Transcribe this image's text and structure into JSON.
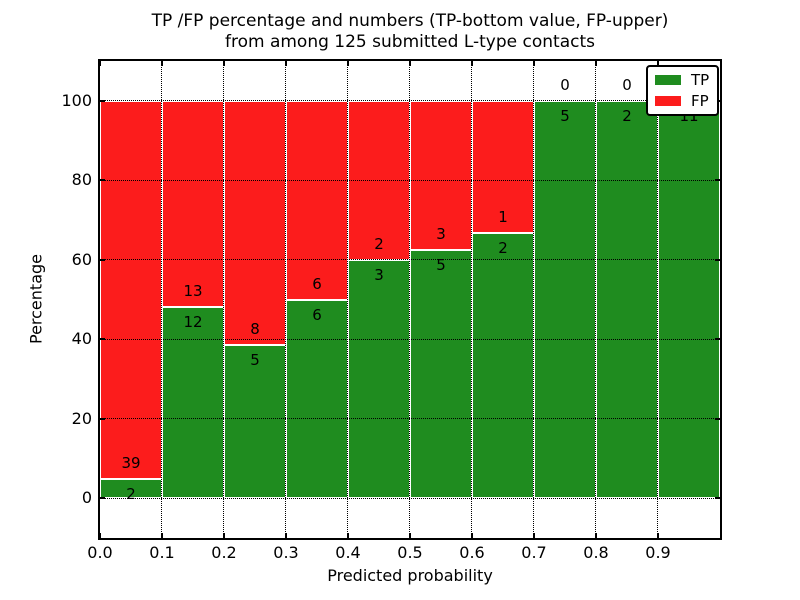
{
  "figure": {
    "title_line1": "TP /FP percentage and numbers (TP-bottom value, FP-upper)",
    "title_line2": "from among 125 submitted L-type contacts"
  },
  "chart_data": {
    "type": "bar",
    "subtype": "stacked-percentage-histogram",
    "title": "TP /FP percentage and numbers (TP-bottom value, FP-upper)\nfrom among 125 submitted L-type contacts",
    "xlabel": "Predicted probability",
    "ylabel": "Percentage",
    "xlim": [
      0.0,
      1.0
    ],
    "ylim": [
      -10,
      110
    ],
    "bin_width": 0.1,
    "bin_starts": [
      0.0,
      0.1,
      0.2,
      0.3,
      0.4,
      0.5,
      0.6,
      0.7,
      0.8,
      0.9
    ],
    "xtick_labels": [
      "0.0",
      "0.1",
      "0.2",
      "0.3",
      "0.4",
      "0.5",
      "0.6",
      "0.7",
      "0.8",
      "0.9"
    ],
    "ytick_values": [
      0,
      20,
      40,
      60,
      80,
      100
    ],
    "ytick_labels": [
      "0",
      "20",
      "40",
      "60",
      "80",
      "100"
    ],
    "grid": true,
    "total_contacts": 125,
    "series": [
      {
        "name": "TP",
        "color": "#1f8c1f",
        "counts": [
          2,
          12,
          5,
          6,
          3,
          5,
          2,
          5,
          2,
          11
        ]
      },
      {
        "name": "FP",
        "color": "#fc1c1c",
        "counts": [
          39,
          13,
          8,
          6,
          2,
          3,
          1,
          0,
          0,
          0
        ]
      }
    ],
    "tp_percentages": [
      4.88,
      48.0,
      38.46,
      50.0,
      60.0,
      62.5,
      66.67,
      100.0,
      100.0,
      100.0
    ],
    "legend": {
      "position": "upper right",
      "entries": [
        {
          "label": "TP",
          "color": "#1f8c1f"
        },
        {
          "label": "FP",
          "color": "#fc1c1c"
        }
      ]
    }
  }
}
